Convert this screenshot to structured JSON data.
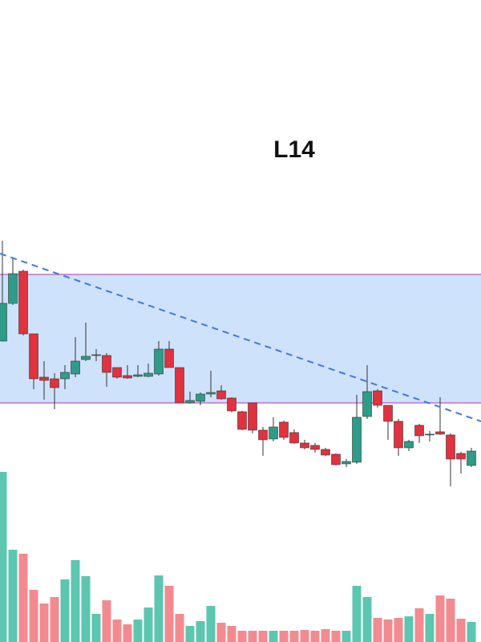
{
  "chart_data": {
    "type": "candlestick",
    "title": "L14",
    "open": [
      275,
      322,
      362,
      284,
      230,
      228,
      228,
      234,
      252,
      257,
      257,
      242,
      232,
      231,
      231,
      234,
      265,
      242,
      198,
      200,
      209,
      213,
      204,
      187,
      198,
      164,
      153,
      174,
      161,
      148,
      145,
      140,
      134,
      122,
      124,
      181,
      213,
      195,
      175,
      142,
      170,
      158,
      162,
      158,
      135,
      120
    ],
    "close": [
      322,
      359,
      284,
      228,
      226,
      217,
      236,
      250,
      256,
      258,
      236,
      230,
      229,
      233,
      235,
      265,
      242,
      198,
      201,
      209,
      211,
      203,
      188,
      165,
      164,
      152,
      168,
      155,
      148,
      142,
      140,
      133,
      121,
      125,
      180,
      212,
      195,
      175,
      142,
      150,
      157,
      159,
      159,
      128,
      128,
      138
    ],
    "high": [
      400,
      378,
      364,
      284,
      250,
      235,
      245,
      280,
      298,
      265,
      260,
      242,
      245,
      245,
      247,
      275,
      275,
      242,
      212,
      211,
      238,
      220,
      205,
      188,
      198,
      168,
      180,
      176,
      165,
      152,
      148,
      142,
      135,
      128,
      208,
      245,
      215,
      195,
      178,
      152,
      172,
      163,
      205,
      160,
      137,
      142
    ],
    "low": [
      275,
      320,
      282,
      215,
      202,
      190,
      215,
      230,
      250,
      250,
      218,
      228,
      228,
      230,
      230,
      232,
      242,
      198,
      197,
      195,
      205,
      202,
      186,
      164,
      160,
      132,
      150,
      152,
      147,
      140,
      136,
      132,
      120,
      118,
      122,
      178,
      192,
      152,
      132,
      138,
      148,
      150,
      158,
      94,
      110,
      118
    ],
    "volume": [
      212,
      115,
      110,
      65,
      48,
      56,
      78,
      102,
      82,
      35,
      52,
      28,
      22,
      28,
      43,
      83,
      70,
      35,
      20,
      26,
      45,
      24,
      20,
      14,
      14,
      14,
      14,
      14,
      14,
      15,
      14,
      16,
      14,
      14,
      70,
      56,
      30,
      28,
      30,
      32,
      42,
      35,
      58,
      54,
      29,
      25
    ],
    "ylim": [
      60,
      460
    ],
    "volume_ylim": [
      0,
      220
    ],
    "zone": [
      198,
      358
    ],
    "trendline": [
      384,
      175
    ],
    "up_color": "#2e9c88",
    "down_color": "#e0323f",
    "up_volume_color": "#5cc6b0",
    "down_volume_color": "#f28a8f",
    "zone_color": "#cfe2fb",
    "zone_border_color": "#c070d0",
    "trendline_color": "#3f78e0"
  }
}
